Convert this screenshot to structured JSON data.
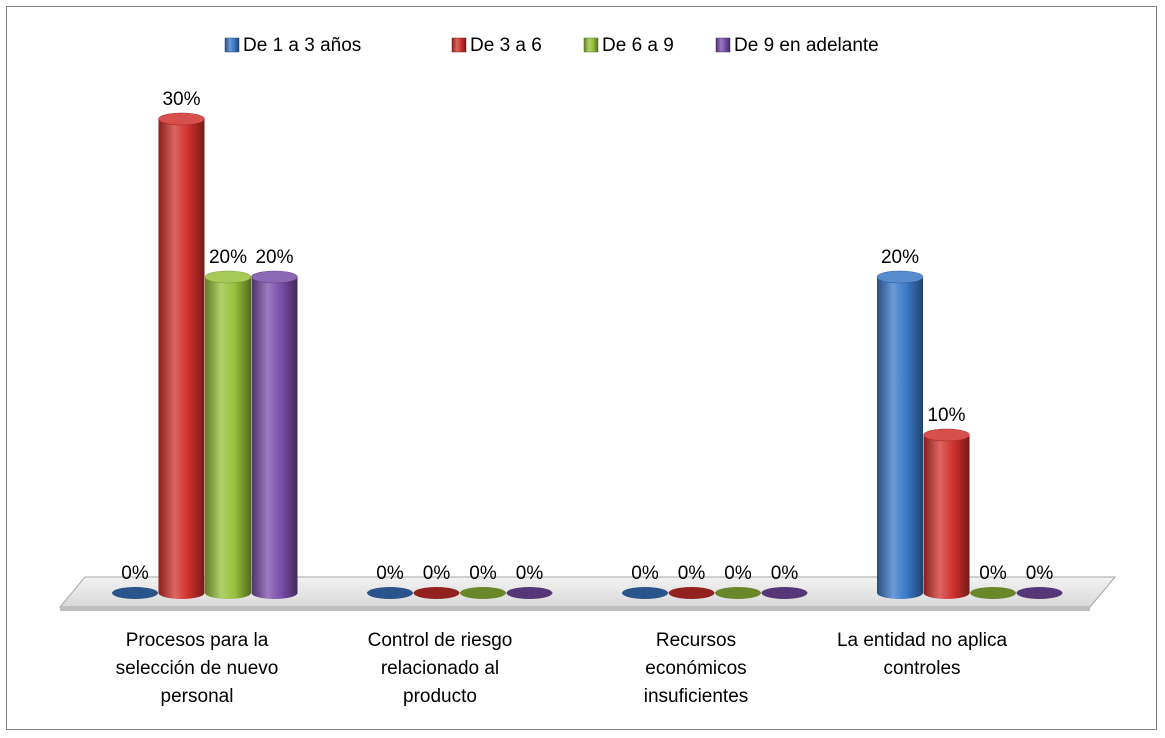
{
  "chart_data": {
    "type": "bar",
    "title": "",
    "xlabel": "",
    "ylabel": "",
    "ylim": [
      0,
      30
    ],
    "grid": false,
    "legend_position": "top",
    "categories": [
      "Procesos para la selección de nuevo personal",
      "Control de riesgo relacionado al producto",
      "Recursos económicos insuficientes",
      "La entidad no aplica controles"
    ],
    "category_lines": [
      [
        "Procesos para la",
        "selección de nuevo",
        "personal"
      ],
      [
        "Control de riesgo",
        "relacionado al",
        "producto"
      ],
      [
        "Recursos",
        "económicos",
        "insuficientes"
      ],
      [
        "La entidad no aplica",
        "controles"
      ]
    ],
    "series": [
      {
        "name": "De 1 a 3 años",
        "color": "#3a78c8",
        "values": [
          0,
          0,
          0,
          20
        ]
      },
      {
        "name": "De 3 a 6",
        "color": "#d0312d",
        "values": [
          30,
          0,
          0,
          10
        ]
      },
      {
        "name": "De 6 a 9",
        "color": "#96c03a",
        "values": [
          20,
          0,
          0,
          0
        ]
      },
      {
        "name": "De 9 en adelante",
        "color": "#7a4da8",
        "values": [
          20,
          0,
          0,
          0
        ]
      }
    ],
    "value_suffix": "%"
  }
}
